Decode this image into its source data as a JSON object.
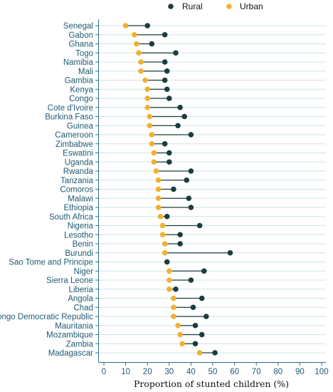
{
  "chart_data": {
    "type": "dumbbell",
    "title": "",
    "xlabel": "Proportion of stunted children (%)",
    "ylabel": "",
    "xlim": [
      0,
      100
    ],
    "xticks": [
      0,
      10,
      20,
      30,
      40,
      50,
      60,
      70,
      80,
      90,
      100
    ],
    "grid": "horizontal",
    "legend_position": "top-right",
    "categories": [
      "Senegal",
      "Gabon",
      "Ghana",
      "Togo",
      "Namibia",
      "Mali",
      "Gambia",
      "Kenya",
      "Congo",
      "Cote d'Ivoire",
      "Burkina Faso",
      "Guinea",
      "Cameroon",
      "Zimbabwe",
      "Eswatini",
      "Uganda",
      "Rwanda",
      "Tanzania",
      "Comoros",
      "Malawi",
      "Ethiopia",
      "South Africa",
      "Nigeria",
      "Lesotho",
      "Benin",
      "Burundi",
      "Sao Tome and Principe",
      "Niger",
      "Sierra Leone",
      "Liberia",
      "Angola",
      "Chad",
      "Congo Democratic Republic",
      "Mauritania",
      "Mozambique",
      "Zambia",
      "Madagascar"
    ],
    "series": [
      {
        "name": "Rural",
        "color": "#1a3d3f",
        "values": [
          20,
          28,
          22,
          33,
          28,
          29,
          28,
          29,
          30,
          35,
          37,
          34,
          40,
          28,
          30,
          30,
          40,
          38,
          32,
          39,
          40,
          29,
          44,
          35,
          35,
          58,
          29,
          46,
          40,
          33,
          45,
          41,
          47,
          42,
          45,
          42,
          51
        ]
      },
      {
        "name": "Urban",
        "color": "#f2b02f",
        "values": [
          10,
          14,
          15,
          16,
          17,
          17,
          19,
          20,
          20,
          20,
          21,
          21,
          22,
          22,
          23,
          23,
          24,
          25,
          25,
          25,
          25,
          26,
          27,
          27,
          28,
          28,
          29,
          30,
          30,
          30,
          32,
          32,
          32,
          34,
          35,
          36,
          44
        ]
      }
    ]
  }
}
